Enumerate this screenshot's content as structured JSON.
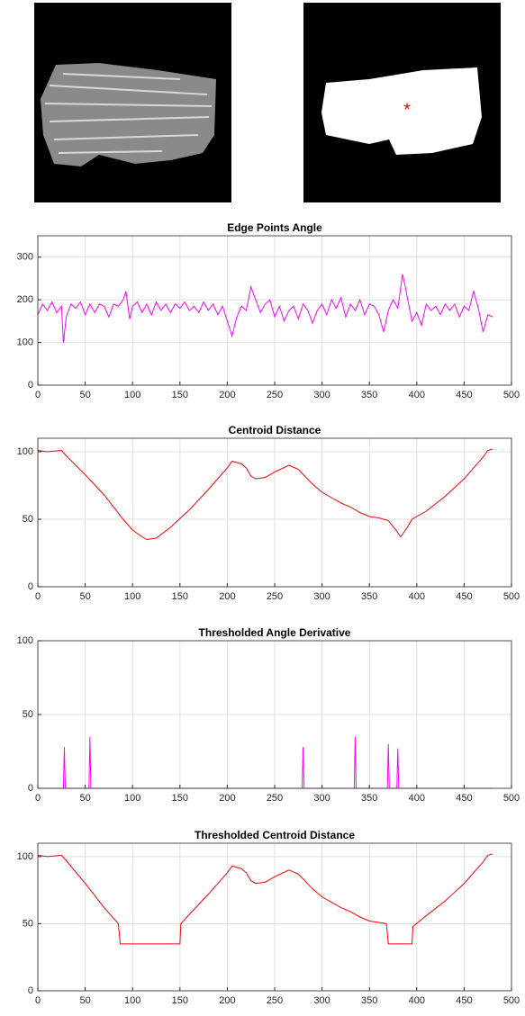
{
  "chart_data": [
    {
      "type": "line",
      "title": "Edge Points Angle",
      "xlim": [
        0,
        500
      ],
      "xticks": [
        0,
        50,
        100,
        150,
        200,
        250,
        300,
        350,
        400,
        450,
        500
      ],
      "ylim": [
        0,
        350
      ],
      "yticks": [
        0,
        100,
        200,
        300
      ],
      "grid": true,
      "x": [
        0,
        5,
        10,
        15,
        20,
        25,
        27,
        30,
        35,
        40,
        45,
        50,
        55,
        60,
        65,
        70,
        75,
        80,
        85,
        90,
        93,
        97,
        100,
        105,
        110,
        115,
        120,
        125,
        130,
        135,
        140,
        145,
        150,
        155,
        160,
        165,
        170,
        175,
        180,
        185,
        190,
        195,
        200,
        205,
        210,
        215,
        220,
        225,
        230,
        235,
        240,
        245,
        250,
        255,
        260,
        265,
        270,
        275,
        280,
        285,
        290,
        295,
        300,
        305,
        310,
        315,
        320,
        325,
        330,
        335,
        340,
        345,
        350,
        355,
        360,
        365,
        370,
        375,
        380,
        385,
        388,
        390,
        395,
        400,
        405,
        410,
        415,
        420,
        425,
        430,
        435,
        440,
        445,
        450,
        455,
        460,
        465,
        470,
        475,
        480
      ],
      "series": [
        {
          "color": "#ff00ff",
          "values": [
            165,
            190,
            175,
            195,
            170,
            185,
            100,
            160,
            190,
            180,
            195,
            165,
            190,
            170,
            190,
            185,
            160,
            190,
            185,
            200,
            220,
            155,
            185,
            195,
            170,
            190,
            165,
            195,
            175,
            190,
            170,
            190,
            180,
            195,
            175,
            185,
            170,
            195,
            175,
            190,
            165,
            185,
            150,
            115,
            160,
            185,
            175,
            230,
            200,
            170,
            190,
            200,
            160,
            185,
            150,
            175,
            185,
            155,
            190,
            175,
            145,
            175,
            190,
            165,
            200,
            180,
            205,
            160,
            190,
            175,
            200,
            165,
            190,
            185,
            165,
            125,
            175,
            200,
            180,
            260,
            230,
            205,
            150,
            170,
            140,
            190,
            175,
            185,
            165,
            190,
            175,
            190,
            160,
            185,
            175,
            220,
            180,
            125,
            165,
            160
          ]
        }
      ]
    },
    {
      "type": "line",
      "title": "Centroid Distance",
      "xlim": [
        0,
        500
      ],
      "xticks": [
        0,
        50,
        100,
        150,
        200,
        250,
        300,
        350,
        400,
        450,
        500
      ],
      "ylim": [
        0,
        110
      ],
      "yticks": [
        0,
        50,
        100
      ],
      "grid": true,
      "x": [
        0,
        10,
        25,
        30,
        50,
        70,
        90,
        100,
        110,
        115,
        125,
        140,
        160,
        180,
        200,
        205,
        215,
        220,
        225,
        230,
        240,
        250,
        265,
        275,
        290,
        300,
        310,
        320,
        330,
        340,
        350,
        360,
        370,
        378,
        383,
        390,
        395,
        410,
        430,
        450,
        470,
        475,
        480
      ],
      "series": [
        {
          "color": "#ff0000",
          "values": [
            101,
            100,
            101,
            97,
            83,
            68,
            50,
            42,
            37,
            35,
            36,
            44,
            57,
            72,
            88,
            93,
            91,
            88,
            82,
            80,
            81,
            85,
            90,
            87,
            76,
            70,
            66,
            62,
            59,
            55,
            52,
            51,
            49,
            42,
            37,
            44,
            50,
            56,
            67,
            80,
            96,
            101,
            102
          ]
        }
      ]
    },
    {
      "type": "line",
      "title": "Thresholded Angle Derivative",
      "xlim": [
        0,
        500
      ],
      "xticks": [
        0,
        50,
        100,
        150,
        200,
        250,
        300,
        350,
        400,
        450,
        500
      ],
      "ylim": [
        0,
        100
      ],
      "yticks": [
        0,
        50,
        100
      ],
      "grid": true,
      "x": [
        0,
        27,
        28,
        29,
        54,
        55,
        56,
        279,
        280,
        281,
        334,
        335,
        336,
        369,
        370,
        371,
        379,
        380,
        381,
        480
      ],
      "series": [
        {
          "color": "#ff00ff",
          "values": [
            0,
            0,
            28,
            0,
            0,
            35,
            0,
            0,
            28,
            0,
            0,
            35,
            0,
            0,
            30,
            0,
            0,
            27,
            0,
            0
          ]
        }
      ]
    },
    {
      "type": "line",
      "title": "Thresholded Centroid Distance",
      "xlim": [
        0,
        500
      ],
      "xticks": [
        0,
        50,
        100,
        150,
        200,
        250,
        300,
        350,
        400,
        450,
        500
      ],
      "ylim": [
        0,
        110
      ],
      "yticks": [
        0,
        50,
        100
      ],
      "grid": true,
      "x": [
        0,
        10,
        25,
        30,
        50,
        70,
        85,
        87,
        150,
        151,
        160,
        180,
        200,
        205,
        215,
        220,
        225,
        230,
        240,
        250,
        265,
        275,
        290,
        300,
        310,
        320,
        330,
        340,
        350,
        360,
        368,
        370,
        395,
        396,
        410,
        430,
        450,
        470,
        475,
        480
      ],
      "series": [
        {
          "color": "#ff0000",
          "values": [
            101,
            100,
            101,
            97,
            80,
            62,
            50,
            35,
            35,
            50,
            57,
            72,
            88,
            93,
            91,
            88,
            82,
            80,
            81,
            85,
            90,
            87,
            76,
            70,
            66,
            62,
            59,
            55,
            52,
            51,
            50,
            35,
            35,
            48,
            56,
            67,
            80,
            96,
            101,
            102
          ]
        }
      ]
    }
  ]
}
